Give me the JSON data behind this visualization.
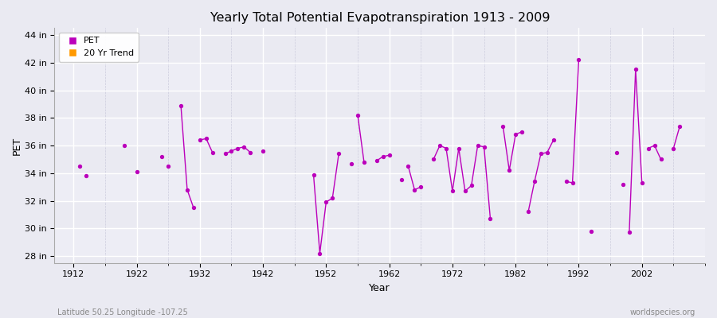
{
  "title": "Yearly Total Potential Evapotranspiration 1913 - 2009",
  "xlabel": "Year",
  "ylabel": "PET",
  "subtitle_left": "Latitude 50.25 Longitude -107.25",
  "subtitle_right": "worldspecies.org",
  "ylim": [
    27.5,
    44.5
  ],
  "yticks": [
    28,
    30,
    32,
    34,
    36,
    38,
    40,
    42,
    44
  ],
  "ytick_labels": [
    "28 in",
    "30 in",
    "32 in",
    "34 in",
    "36 in",
    "38 in",
    "40 in",
    "42 in",
    "44 in"
  ],
  "pet_color": "#bb00bb",
  "trend_color": "#ff9900",
  "bg_color": "#eaeaf2",
  "grid_color": "#ffffff",
  "grid_minor_color": "#d8d8e8",
  "legend_labels": [
    "PET",
    "20 Yr Trend"
  ],
  "segments": [
    {
      "years": [
        1913
      ],
      "values": [
        34.5
      ]
    },
    {
      "years": [
        1914
      ],
      "values": [
        33.8
      ]
    },
    {
      "years": [
        1920
      ],
      "values": [
        36.0
      ]
    },
    {
      "years": [
        1922
      ],
      "values": [
        34.1
      ]
    },
    {
      "years": [
        1926
      ],
      "values": [
        35.2
      ]
    },
    {
      "years": [
        1927
      ],
      "values": [
        34.5
      ]
    },
    {
      "years": [
        1929,
        1930,
        1931
      ],
      "values": [
        38.9,
        32.8,
        31.5
      ]
    },
    {
      "years": [
        1932,
        1933,
        1934
      ],
      "values": [
        36.4,
        36.5,
        35.5
      ]
    },
    {
      "years": [
        1936,
        1937,
        1938,
        1939,
        1940
      ],
      "values": [
        35.4,
        35.6,
        35.8,
        35.9,
        35.5
      ]
    },
    {
      "years": [
        1942
      ],
      "values": [
        35.6
      ]
    },
    {
      "years": [
        1950,
        1951,
        1952,
        1953,
        1954
      ],
      "values": [
        33.9,
        28.2,
        31.9,
        32.2,
        35.4
      ]
    },
    {
      "years": [
        1956
      ],
      "values": [
        34.7
      ]
    },
    {
      "years": [
        1957,
        1958
      ],
      "values": [
        38.2,
        34.8
      ]
    },
    {
      "years": [
        1960,
        1961,
        1962
      ],
      "values": [
        34.9,
        35.2,
        35.3
      ]
    },
    {
      "years": [
        1964
      ],
      "values": [
        33.5
      ]
    },
    {
      "years": [
        1965,
        1966,
        1967
      ],
      "values": [
        34.5,
        32.8,
        33.0
      ]
    },
    {
      "years": [
        1969,
        1970,
        1971,
        1972,
        1973,
        1974,
        1975,
        1976,
        1977,
        1978
      ],
      "values": [
        35.0,
        36.0,
        35.8,
        32.7,
        35.8,
        32.7,
        33.1,
        36.0,
        35.9,
        30.7
      ]
    },
    {
      "years": [
        1980,
        1981,
        1982,
        1983
      ],
      "values": [
        37.4,
        34.2,
        36.8,
        37.0
      ]
    },
    {
      "years": [
        1984,
        1985,
        1986,
        1987,
        1988
      ],
      "values": [
        31.2,
        33.4,
        35.4,
        35.5,
        36.4
      ]
    },
    {
      "years": [
        1990,
        1991,
        1992
      ],
      "values": [
        33.4,
        33.3,
        42.2
      ]
    },
    {
      "years": [
        1994
      ],
      "values": [
        29.8
      ]
    },
    {
      "years": [
        1998
      ],
      "values": [
        35.5
      ]
    },
    {
      "years": [
        1999
      ],
      "values": [
        33.2
      ]
    },
    {
      "years": [
        2000,
        2001,
        2002
      ],
      "values": [
        29.7,
        41.5,
        33.3
      ]
    },
    {
      "years": [
        2003,
        2004,
        2005
      ],
      "values": [
        35.8,
        36.0,
        35.0
      ]
    },
    {
      "years": [
        2007,
        2008
      ],
      "values": [
        35.8,
        37.4
      ]
    }
  ],
  "xmin": 1909,
  "xmax": 2012,
  "xticks": [
    1912,
    1922,
    1932,
    1942,
    1952,
    1962,
    1972,
    1982,
    1992,
    2002
  ]
}
